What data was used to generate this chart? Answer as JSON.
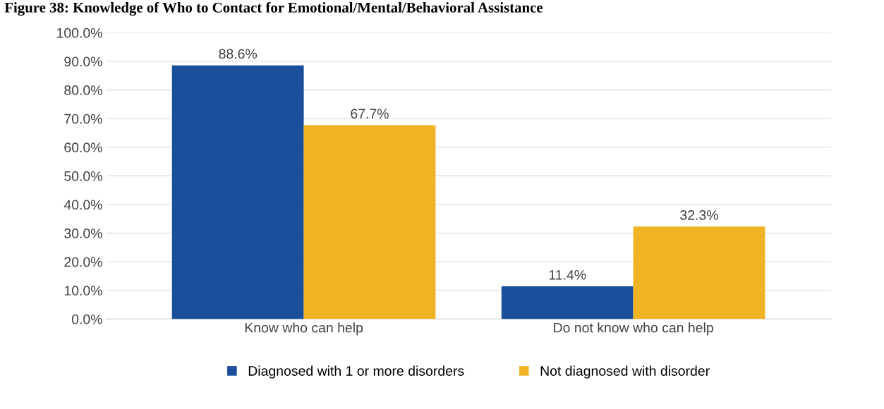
{
  "chart_data": {
    "type": "bar",
    "title": "Figure 38: Knowledge of Who to Contact for Emotional/Mental/Behavioral Assistance",
    "categories": [
      "Know who can help",
      "Do not know who can help"
    ],
    "series": [
      {
        "name": "Diagnosed with 1 or more disorders",
        "color": "#1b4f9c",
        "values": [
          88.6,
          11.4
        ],
        "value_labels": [
          "88.6%",
          "11.4%"
        ]
      },
      {
        "name": "Not diagnosed with disorder",
        "color": "#f0b323",
        "values": [
          67.7,
          32.3
        ],
        "value_labels": [
          "67.7%",
          "32.3%"
        ]
      }
    ],
    "ylim": [
      0,
      100
    ],
    "yticks": [
      {
        "value": 0,
        "label": "0.0%"
      },
      {
        "value": 10,
        "label": "10.0%"
      },
      {
        "value": 20,
        "label": "20.0%"
      },
      {
        "value": 30,
        "label": "30.0%"
      },
      {
        "value": 40,
        "label": "40.0%"
      },
      {
        "value": 50,
        "label": "50.0%"
      },
      {
        "value": 60,
        "label": "60.0%"
      },
      {
        "value": 70,
        "label": "70.0%"
      },
      {
        "value": 80,
        "label": "80.0%"
      },
      {
        "value": 90,
        "label": "90.0%"
      },
      {
        "value": 100,
        "label": "100.0%"
      }
    ],
    "grid": "y",
    "legend": "bottom"
  }
}
